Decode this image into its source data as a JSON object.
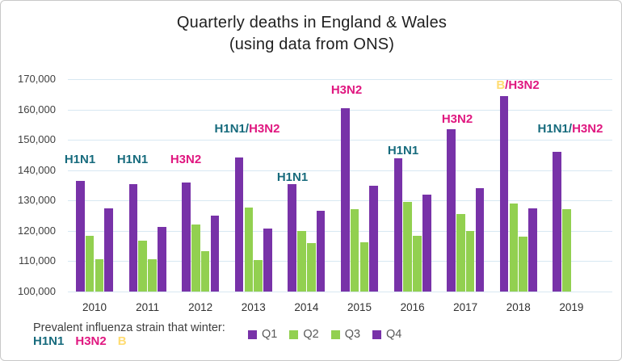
{
  "title": {
    "line1": "Quarterly deaths in England & Wales",
    "line2": "(using data from ONS)"
  },
  "colors": {
    "q1": "#7832A8",
    "q2": "#92D050",
    "q3": "#92D050",
    "q4": "#7832A8",
    "teal": "#176B7D",
    "pink": "#E01880",
    "yellow": "#FFDC72",
    "gridline": "#D8E8F2",
    "title_text": "#1F1F1F",
    "axis_text": "#3F3F3F",
    "legend_text": "#595959",
    "frame_border": "#C8C8C8"
  },
  "chart_data": {
    "type": "bar",
    "title": "Quarterly deaths in England & Wales (using data from ONS)",
    "categories": [
      "2010",
      "2011",
      "2012",
      "2013",
      "2014",
      "2015",
      "2016",
      "2017",
      "2018",
      "2019"
    ],
    "series": [
      {
        "name": "Q1",
        "color_key": "q1",
        "values": [
          136400,
          135300,
          135800,
          144200,
          135400,
          160400,
          144000,
          153600,
          164400,
          146000
        ]
      },
      {
        "name": "Q2",
        "color_key": "q2",
        "values": [
          118300,
          116900,
          122200,
          127800,
          119900,
          127100,
          129600,
          125600,
          128900,
          127100
        ]
      },
      {
        "name": "Q3",
        "color_key": "q3",
        "values": [
          110700,
          110700,
          113300,
          110400,
          115900,
          116200,
          118300,
          119900,
          118000,
          null
        ]
      },
      {
        "name": "Q4",
        "color_key": "q4",
        "values": [
          127300,
          121300,
          125100,
          120700,
          126500,
          134900,
          132000,
          134100,
          127400,
          null
        ]
      }
    ],
    "ylim": [
      100000,
      170000
    ],
    "yticks": [
      {
        "v": 170000,
        "label": "170,000"
      },
      {
        "v": 160000,
        "label": "160,000"
      },
      {
        "v": 150000,
        "label": "150,000"
      },
      {
        "v": 140000,
        "label": "140,000"
      },
      {
        "v": 130000,
        "label": "130,000"
      },
      {
        "v": 120000,
        "label": "120,000"
      },
      {
        "v": 110000,
        "label": "110,000"
      },
      {
        "v": 100000,
        "label": "100,000"
      }
    ],
    "grid": true,
    "legend_position": "bottom",
    "annotations": [
      {
        "year": "2010",
        "parts": [
          {
            "text": "H1N1",
            "color_key": "teal"
          }
        ]
      },
      {
        "year": "2011",
        "parts": [
          {
            "text": "H1N1",
            "color_key": "teal"
          }
        ]
      },
      {
        "year": "2012",
        "parts": [
          {
            "text": "H3N2",
            "color_key": "pink"
          }
        ]
      },
      {
        "year": "2013",
        "parts": [
          {
            "text": "H1N1",
            "color_key": "teal"
          },
          {
            "text": "/",
            "color_key": "teal"
          },
          {
            "text": "H3N2",
            "color_key": "pink"
          }
        ]
      },
      {
        "year": "2014",
        "parts": [
          {
            "text": "H1N1",
            "color_key": "teal"
          }
        ]
      },
      {
        "year": "2015",
        "parts": [
          {
            "text": "H3N2",
            "color_key": "pink"
          }
        ]
      },
      {
        "year": "2016",
        "parts": [
          {
            "text": "H1N1",
            "color_key": "teal"
          }
        ]
      },
      {
        "year": "2017",
        "parts": [
          {
            "text": "H3N2",
            "color_key": "pink"
          }
        ]
      },
      {
        "year": "2018",
        "parts": [
          {
            "text": "B",
            "color_key": "yellow"
          },
          {
            "text": "/",
            "color_key": "pink"
          },
          {
            "text": "H3N2",
            "color_key": "pink"
          }
        ]
      },
      {
        "year": "2019",
        "parts": [
          {
            "text": "H1N1",
            "color_key": "teal"
          },
          {
            "text": "/",
            "color_key": "teal"
          },
          {
            "text": "H3N2",
            "color_key": "pink"
          }
        ]
      }
    ]
  },
  "legend": {
    "items": [
      {
        "label": "Q1",
        "color_key": "q1"
      },
      {
        "label": "Q2",
        "color_key": "q2"
      },
      {
        "label": "Q3",
        "color_key": "q3"
      },
      {
        "label": "Q4",
        "color_key": "q4"
      }
    ]
  },
  "footnote": {
    "caption": "Prevalent influenza strain that winter:",
    "strains": [
      {
        "text": "H1N1",
        "color_key": "teal"
      },
      {
        "text": "H3N2",
        "color_key": "pink"
      },
      {
        "text": "B",
        "color_key": "yellow"
      }
    ]
  }
}
